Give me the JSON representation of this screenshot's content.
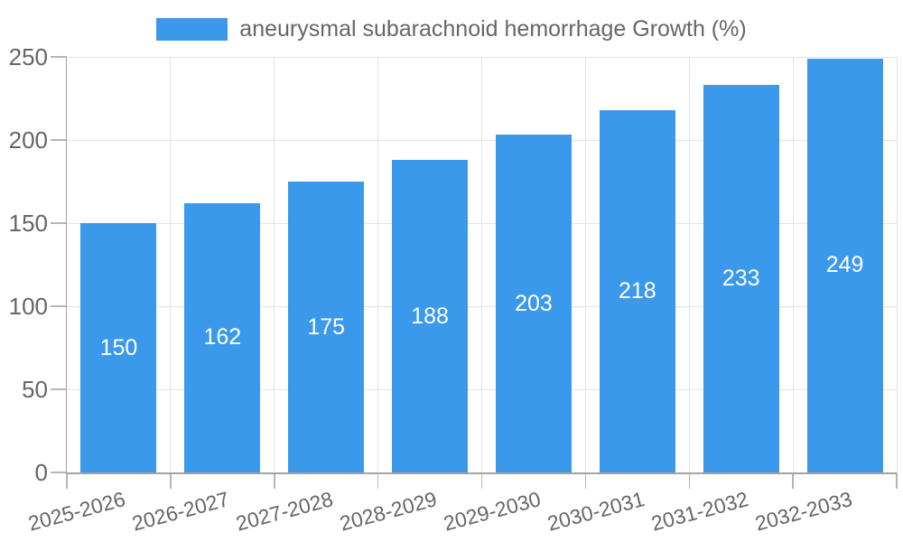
{
  "chart_data": {
    "type": "bar",
    "title": "aneurysmal subarachnoid hemorrhage Growth (%)",
    "legend": {
      "position": "top",
      "entries": [
        "aneurysmal subarachnoid hemorrhage Growth (%)"
      ]
    },
    "categories": [
      "2025-2026",
      "2026-2027",
      "2027-2028",
      "2028-2029",
      "2029-2030",
      "2030-2031",
      "2031-2032",
      "2032-2033"
    ],
    "values": [
      150,
      162,
      175,
      188,
      203,
      218,
      233,
      249
    ],
    "xlabel": "",
    "ylabel": "",
    "ylim": [
      0,
      250
    ],
    "yticks": [
      0,
      50,
      100,
      150,
      200,
      250
    ],
    "grid": true,
    "bar_value_labels": true,
    "colors": {
      "bar": "#3B99EC",
      "bar_label": "#FFFFFF",
      "axis_text": "#666666",
      "grid": "#E3E3E3",
      "tick": "#B5B5B5",
      "axis_line": "#A3A3A3",
      "background": "#FFFFFF"
    }
  }
}
